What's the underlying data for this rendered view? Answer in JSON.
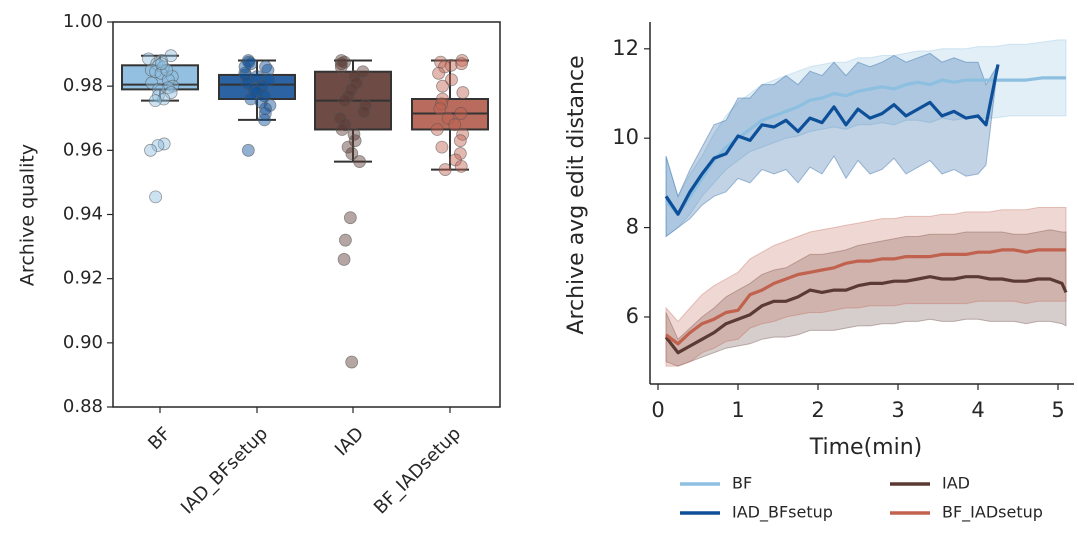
{
  "colors": {
    "BF": "#8dbfe0",
    "IAD_BFsetup": "#0d4f98",
    "IAD": "#5b3a34",
    "BF_IADsetup": "#c1624f",
    "BF_box": "#93c0e0",
    "IAD_BFsetup_box": "#2b63a3",
    "IAD_box": "#6e4c45",
    "BF_IADsetup_box": "#b96b5d",
    "axis": "#262626"
  },
  "chart_data": [
    {
      "type": "box",
      "ylabel": "Archive quality",
      "ylim": [
        0.88,
        1.0
      ],
      "yticks": [
        0.88,
        0.9,
        0.92,
        0.94,
        0.96,
        0.98,
        1.0
      ],
      "ytick_labels": [
        "0.88",
        "0.90",
        "0.92",
        "0.94",
        "0.96",
        "0.98",
        "1.00"
      ],
      "categories": [
        "BF",
        "IAD_BFsetup",
        "IAD",
        "BF_IADsetup"
      ],
      "boxes": [
        {
          "name": "BF",
          "whislo": 0.9755,
          "q1": 0.979,
          "med": 0.9805,
          "q3": 0.9865,
          "whishi": 0.9895,
          "points": [
            0.9895,
            0.9885,
            0.988,
            0.987,
            0.9865,
            0.986,
            0.985,
            0.9845,
            0.984,
            0.983,
            0.982,
            0.981,
            0.98,
            0.9795,
            0.979,
            0.978,
            0.977,
            0.976,
            0.9755,
            0.985,
            0.987,
            0.962,
            0.9615,
            0.96,
            0.9455
          ]
        },
        {
          "name": "IAD_BFsetup",
          "whislo": 0.9695,
          "q1": 0.976,
          "med": 0.9805,
          "q3": 0.9835,
          "whishi": 0.988,
          "points": [
            0.988,
            0.9875,
            0.987,
            0.986,
            0.985,
            0.984,
            0.9835,
            0.983,
            0.982,
            0.981,
            0.98,
            0.979,
            0.978,
            0.977,
            0.976,
            0.975,
            0.974,
            0.973,
            0.9715,
            0.9695,
            0.986,
            0.96
          ]
        },
        {
          "name": "IAD",
          "whislo": 0.9565,
          "q1": 0.9665,
          "med": 0.9755,
          "q3": 0.9845,
          "whishi": 0.988,
          "points": [
            0.988,
            0.9875,
            0.987,
            0.986,
            0.9845,
            0.983,
            0.981,
            0.979,
            0.977,
            0.9755,
            0.974,
            0.972,
            0.97,
            0.968,
            0.9665,
            0.965,
            0.963,
            0.961,
            0.959,
            0.9565,
            0.939,
            0.932,
            0.926,
            0.894
          ]
        },
        {
          "name": "BF_IADsetup",
          "whislo": 0.954,
          "q1": 0.9665,
          "med": 0.9715,
          "q3": 0.976,
          "whishi": 0.988,
          "points": [
            0.988,
            0.9875,
            0.987,
            0.9865,
            0.986,
            0.984,
            0.982,
            0.98,
            0.978,
            0.976,
            0.9745,
            0.973,
            0.9715,
            0.97,
            0.968,
            0.9665,
            0.965,
            0.963,
            0.961,
            0.959,
            0.957,
            0.955,
            0.954
          ]
        }
      ],
      "grid": false
    },
    {
      "type": "line",
      "xlabel": "Time(min)",
      "ylabel": "Archive avg edit distance",
      "xlim": [
        -0.1,
        5.2
      ],
      "ylim": [
        4.5,
        12.6
      ],
      "xticks": [
        0,
        1,
        2,
        3,
        4,
        5
      ],
      "xtick_labels": [
        "0",
        "1",
        "2",
        "3",
        "4",
        "5"
      ],
      "yticks": [
        6,
        8,
        10,
        12
      ],
      "ytick_labels": [
        "6",
        "8",
        "10",
        "12"
      ],
      "legend_position": "bottom",
      "legend": [
        "BF",
        "IAD_BFsetup",
        "IAD",
        "BF_IADsetup"
      ],
      "grid": false,
      "series": [
        {
          "name": "BF",
          "x": [
            0.1,
            0.25,
            0.4,
            0.55,
            0.7,
            0.85,
            1.0,
            1.15,
            1.3,
            1.45,
            1.6,
            1.75,
            1.9,
            2.05,
            2.2,
            2.35,
            2.5,
            2.65,
            2.8,
            2.95,
            3.1,
            3.25,
            3.4,
            3.55,
            3.7,
            3.85,
            4.0,
            4.2,
            4.4,
            4.6,
            4.8,
            5.0,
            5.1
          ],
          "y": [
            8.6,
            8.3,
            8.7,
            9.1,
            9.5,
            9.8,
            10.0,
            10.2,
            10.4,
            10.5,
            10.6,
            10.7,
            10.85,
            10.9,
            11.0,
            10.95,
            11.05,
            11.1,
            11.15,
            11.1,
            11.2,
            11.25,
            11.2,
            11.3,
            11.25,
            11.3,
            11.3,
            11.3,
            11.3,
            11.3,
            11.35,
            11.35,
            11.35
          ],
          "lower": [
            7.8,
            8.0,
            8.3,
            8.7,
            9.0,
            9.3,
            9.5,
            9.7,
            9.8,
            9.9,
            10.0,
            10.05,
            10.15,
            10.2,
            10.25,
            10.2,
            10.3,
            10.3,
            10.35,
            10.3,
            10.4,
            10.4,
            10.35,
            10.45,
            10.4,
            10.45,
            10.45,
            10.45,
            10.5,
            10.5,
            10.5,
            10.5,
            10.5
          ],
          "upper": [
            9.6,
            8.7,
            9.2,
            9.6,
            10.1,
            10.5,
            10.8,
            11.0,
            11.2,
            11.3,
            11.4,
            11.5,
            11.6,
            11.65,
            11.7,
            11.7,
            11.8,
            11.8,
            11.85,
            11.85,
            11.9,
            11.95,
            11.95,
            12.0,
            12.0,
            12.0,
            12.05,
            12.05,
            12.1,
            12.1,
            12.15,
            12.2,
            12.2
          ]
        },
        {
          "name": "IAD_BFsetup",
          "x": [
            0.1,
            0.25,
            0.4,
            0.55,
            0.7,
            0.85,
            1.0,
            1.15,
            1.3,
            1.45,
            1.6,
            1.75,
            1.9,
            2.05,
            2.2,
            2.35,
            2.5,
            2.65,
            2.8,
            2.95,
            3.1,
            3.25,
            3.4,
            3.55,
            3.7,
            3.85,
            4.0,
            4.1,
            4.25
          ],
          "y": [
            8.7,
            8.3,
            8.8,
            9.2,
            9.55,
            9.65,
            10.05,
            9.95,
            10.3,
            10.25,
            10.4,
            10.15,
            10.45,
            10.35,
            10.7,
            10.3,
            10.65,
            10.45,
            10.55,
            10.75,
            10.5,
            10.65,
            10.8,
            10.5,
            10.6,
            10.45,
            10.5,
            10.3,
            11.65
          ],
          "lower": [
            7.8,
            8.0,
            8.2,
            8.5,
            8.7,
            8.8,
            9.1,
            9.0,
            9.3,
            9.2,
            9.3,
            9.0,
            9.35,
            9.2,
            9.6,
            9.1,
            9.5,
            9.2,
            9.3,
            9.55,
            9.2,
            9.35,
            9.5,
            9.2,
            9.3,
            9.15,
            9.2,
            9.4,
            11.65
          ],
          "upper": [
            9.6,
            8.7,
            9.3,
            9.8,
            10.3,
            10.4,
            10.9,
            10.9,
            11.2,
            11.2,
            11.4,
            11.2,
            11.5,
            11.4,
            11.7,
            11.4,
            11.7,
            11.6,
            11.7,
            11.85,
            11.7,
            11.8,
            11.9,
            11.7,
            11.8,
            11.7,
            11.7,
            11.2,
            11.65
          ]
        },
        {
          "name": "IAD",
          "x": [
            0.1,
            0.25,
            0.4,
            0.55,
            0.7,
            0.85,
            1.0,
            1.15,
            1.3,
            1.45,
            1.6,
            1.75,
            1.9,
            2.05,
            2.2,
            2.35,
            2.5,
            2.65,
            2.8,
            2.95,
            3.1,
            3.25,
            3.4,
            3.55,
            3.7,
            3.85,
            4.0,
            4.15,
            4.3,
            4.45,
            4.6,
            4.75,
            4.9,
            5.05,
            5.1
          ],
          "y": [
            5.55,
            5.2,
            5.35,
            5.5,
            5.65,
            5.85,
            5.95,
            6.05,
            6.25,
            6.35,
            6.35,
            6.45,
            6.6,
            6.55,
            6.6,
            6.6,
            6.7,
            6.75,
            6.75,
            6.8,
            6.8,
            6.85,
            6.9,
            6.85,
            6.85,
            6.9,
            6.9,
            6.85,
            6.85,
            6.8,
            6.8,
            6.85,
            6.85,
            6.75,
            6.55
          ],
          "lower": [
            5.0,
            4.9,
            5.0,
            5.1,
            5.2,
            5.3,
            5.35,
            5.4,
            5.5,
            5.55,
            5.55,
            5.6,
            5.7,
            5.7,
            5.7,
            5.75,
            5.8,
            5.8,
            5.85,
            5.85,
            5.9,
            5.9,
            5.95,
            5.9,
            5.9,
            5.95,
            5.95,
            5.9,
            5.9,
            5.9,
            5.85,
            5.9,
            5.9,
            5.85,
            5.8
          ],
          "upper": [
            6.1,
            5.5,
            5.75,
            6.0,
            6.2,
            6.45,
            6.6,
            6.75,
            6.95,
            7.05,
            7.1,
            7.25,
            7.4,
            7.4,
            7.45,
            7.5,
            7.6,
            7.65,
            7.7,
            7.75,
            7.8,
            7.8,
            7.85,
            7.85,
            7.85,
            7.9,
            7.9,
            7.9,
            7.9,
            7.85,
            7.85,
            7.9,
            7.95,
            7.9,
            7.9
          ]
        },
        {
          "name": "BF_IADsetup",
          "x": [
            0.1,
            0.25,
            0.4,
            0.55,
            0.7,
            0.85,
            1.0,
            1.15,
            1.3,
            1.45,
            1.6,
            1.75,
            1.9,
            2.05,
            2.2,
            2.35,
            2.5,
            2.65,
            2.8,
            2.95,
            3.1,
            3.25,
            3.4,
            3.55,
            3.7,
            3.85,
            4.0,
            4.15,
            4.3,
            4.45,
            4.6,
            4.75,
            4.9,
            5.05,
            5.1
          ],
          "y": [
            5.6,
            5.4,
            5.65,
            5.85,
            5.95,
            6.1,
            6.15,
            6.5,
            6.6,
            6.75,
            6.85,
            6.95,
            7.0,
            7.05,
            7.1,
            7.2,
            7.25,
            7.25,
            7.3,
            7.3,
            7.35,
            7.35,
            7.35,
            7.4,
            7.4,
            7.4,
            7.45,
            7.45,
            7.5,
            7.5,
            7.45,
            7.5,
            7.5,
            7.5,
            7.5
          ],
          "lower": [
            4.9,
            4.9,
            5.0,
            5.2,
            5.3,
            5.45,
            5.5,
            5.75,
            5.85,
            5.9,
            6.0,
            6.05,
            6.1,
            6.1,
            6.15,
            6.2,
            6.2,
            6.25,
            6.25,
            6.25,
            6.3,
            6.3,
            6.3,
            6.3,
            6.3,
            6.3,
            6.35,
            6.35,
            6.35,
            6.35,
            6.3,
            6.35,
            6.35,
            6.35,
            6.35
          ],
          "upper": [
            6.2,
            5.9,
            6.2,
            6.5,
            6.7,
            6.85,
            7.0,
            7.3,
            7.45,
            7.6,
            7.7,
            7.8,
            7.9,
            7.95,
            8.0,
            8.05,
            8.1,
            8.15,
            8.2,
            8.2,
            8.25,
            8.25,
            8.25,
            8.3,
            8.3,
            8.35,
            8.35,
            8.35,
            8.4,
            8.4,
            8.4,
            8.45,
            8.45,
            8.45,
            8.45
          ]
        }
      ]
    }
  ]
}
